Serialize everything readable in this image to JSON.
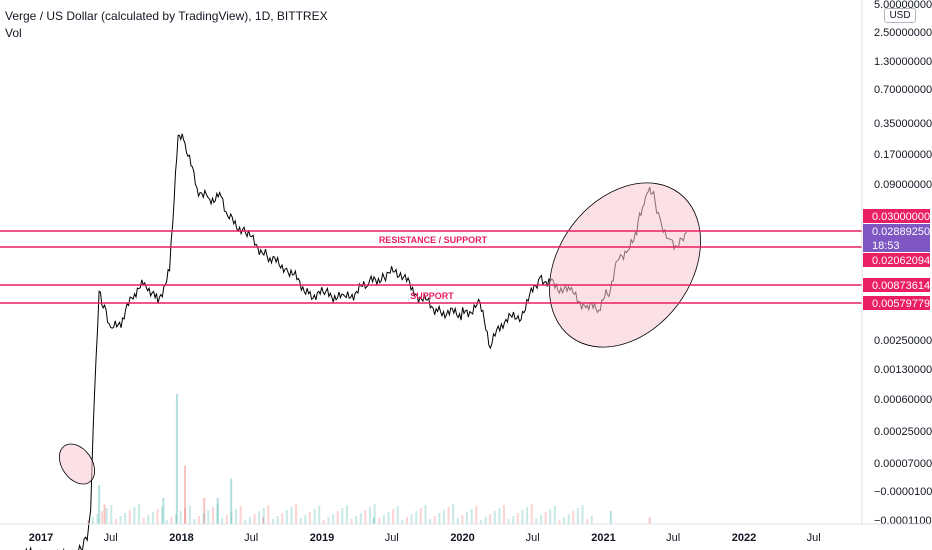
{
  "header": {
    "title": "Verge / US Dollar (calculated by TradingView), 1D, BITTREX",
    "volume_label": "Vol"
  },
  "price_axis": {
    "unit": "USD",
    "ticks": [
      "5.00000000",
      "2.50000000",
      "1.30000000",
      "0.70000000",
      "0.35000000",
      "0.17000000",
      "0.09000000",
      "0.03000000",
      "0.02889250",
      "0.02062094",
      "0.00873614",
      "0.00579779",
      "0.00250000",
      "0.00130000",
      "0.00060000",
      "0.00025000",
      "0.00007000",
      "−0.00001000",
      "−0.00011000"
    ]
  },
  "price_tags": [
    {
      "text": "0.03000000",
      "color": "#e91e63"
    },
    {
      "text": "0.02889250",
      "color": "#7e57c2",
      "subtext": "18:53"
    },
    {
      "text": "0.02062094",
      "color": "#e91e63"
    },
    {
      "text": "0.00873614",
      "color": "#e91e63"
    },
    {
      "text": "0.00579779",
      "color": "#e91e63"
    }
  ],
  "annotations": {
    "resistance_label": "RESISTANCE / SUPPORT",
    "support_label": "SUPPORT"
  },
  "colors": {
    "line_color": "#e91e63",
    "ellipse_fill": "#f8c8d0",
    "price_line": "#000000",
    "volume_up": "#26a69a",
    "volume_down": "#ef5350",
    "current_price_tag": "#7e57c2"
  },
  "chart_data": {
    "type": "line",
    "scale": "log",
    "title": "Verge / US Dollar (calculated by TradingView), 1D, BITTREX",
    "xlabel": "",
    "ylabel": "",
    "x_ticks": [
      "2017",
      "Jul",
      "2018",
      "Jul",
      "2019",
      "Jul",
      "2020",
      "Jul",
      "2021",
      "Jul",
      "2022",
      "Jul"
    ],
    "x": [
      "2016-11-01",
      "2017-01-01",
      "2017-03-01",
      "2017-04-15",
      "2017-05-01",
      "2017-05-10",
      "2017-05-20",
      "2017-06-01",
      "2017-06-15",
      "2017-07-01",
      "2017-08-01",
      "2017-09-01",
      "2017-10-01",
      "2017-11-01",
      "2017-12-01",
      "2017-12-13",
      "2017-12-23",
      "2018-01-10",
      "2018-02-10",
      "2018-03-15",
      "2018-04-10",
      "2018-05-05",
      "2018-06-20",
      "2018-08-15",
      "2018-10-01",
      "2018-12-01",
      "2019-01-15",
      "2019-03-01",
      "2019-05-01",
      "2019-06-15",
      "2019-07-20",
      "2019-09-01",
      "2019-11-01",
      "2020-01-01",
      "2020-02-15",
      "2020-03-13",
      "2020-04-15",
      "2020-06-01",
      "2020-07-20",
      "2020-08-20",
      "2020-10-10",
      "2020-11-20",
      "2020-12-20",
      "2021-01-15",
      "2021-02-10",
      "2021-03-10",
      "2021-04-01",
      "2021-04-20",
      "2021-05-01",
      "2021-05-15",
      "2021-06-01",
      "2021-06-22",
      "2021-07-15",
      "2021-08-05"
    ],
    "series": [
      {
        "values": [
          2e-05,
          1.8e-05,
          1.8e-05,
          2e-05,
          2.8e-05,
          6e-05,
          0.0008,
          0.0075,
          0.005,
          0.003,
          0.004,
          0.0075,
          0.009,
          0.006,
          0.012,
          0.06,
          0.26,
          0.22,
          0.08,
          0.06,
          0.07,
          0.04,
          0.028,
          0.016,
          0.013,
          0.007,
          0.0072,
          0.0063,
          0.009,
          0.011,
          0.012,
          0.0072,
          0.0048,
          0.0045,
          0.0055,
          0.0022,
          0.0038,
          0.0045,
          0.0105,
          0.009,
          0.0072,
          0.0052,
          0.0052,
          0.0075,
          0.017,
          0.02,
          0.035,
          0.06,
          0.08,
          0.06,
          0.035,
          0.025,
          0.021,
          0.029
        ]
      }
    ],
    "horizontal_levels": [
      0.03,
      0.02062094,
      0.00873614,
      0.00579779
    ],
    "volume_series": [
      {
        "x": "2017-06-01",
        "v": 0.3,
        "dir": "up"
      },
      {
        "x": "2017-06-15",
        "v": 0.15,
        "dir": "down"
      },
      {
        "x": "2017-11-15",
        "v": 0.2,
        "dir": "up"
      },
      {
        "x": "2017-12-20",
        "v": 1.0,
        "dir": "up"
      },
      {
        "x": "2018-01-10",
        "v": 0.45,
        "dir": "down"
      },
      {
        "x": "2018-03-01",
        "v": 0.2,
        "dir": "down"
      },
      {
        "x": "2018-04-05",
        "v": 0.2,
        "dir": "up"
      },
      {
        "x": "2018-05-10",
        "v": 0.35,
        "dir": "up"
      },
      {
        "x": "2018-08-01",
        "v": 0.05,
        "dir": "down"
      },
      {
        "x": "2019-05-15",
        "v": 0.05,
        "dir": "up"
      },
      {
        "x": "2021-01-20",
        "v": 0.1,
        "dir": "up"
      },
      {
        "x": "2021-05-01",
        "v": 0.05,
        "dir": "down"
      }
    ]
  }
}
